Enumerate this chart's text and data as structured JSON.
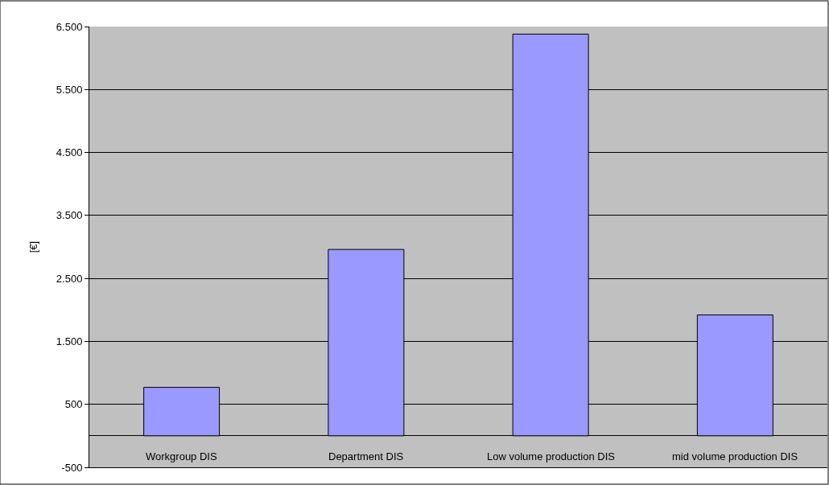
{
  "chart_data": {
    "type": "bar",
    "ylabel": "[€]",
    "categories": [
      "Workgroup DIS",
      "Department DIS",
      "Low volume production DIS",
      "mid volume production DIS"
    ],
    "values": [
      770,
      2960,
      6380,
      1920
    ],
    "color": "#9999ff",
    "ylim": [
      -500,
      6500
    ],
    "yticks": [
      -500,
      500,
      {
        "value": 1500,
        "label": "1.500"
      },
      {
        "value": 2500,
        "label": "2.500"
      },
      {
        "value": 3500,
        "label": "3.500"
      },
      {
        "value": 4500,
        "label": "4.500"
      },
      {
        "value": 5500,
        "label": "5.500"
      },
      {
        "value": 6500,
        "label": "6.500"
      }
    ],
    "grid": "y"
  }
}
